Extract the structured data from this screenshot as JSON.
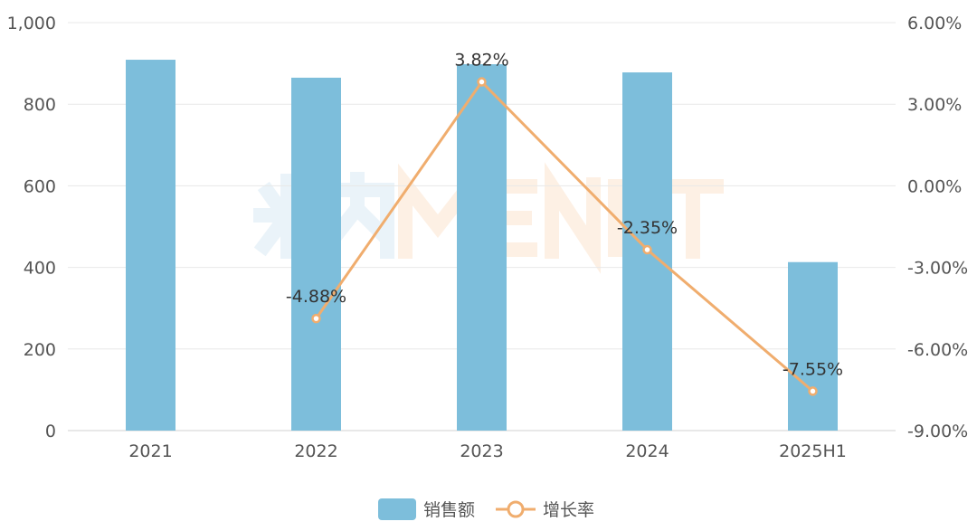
{
  "watermark": "米内MENET",
  "colors": {
    "bar": "#7dbedb",
    "line": "#f0ad6e",
    "grid": "#e8e8e8",
    "axis_text": "#555555",
    "label_text": "#333333"
  },
  "chart_data": {
    "type": "bar+line",
    "categories": [
      "2021",
      "2022",
      "2023",
      "2024",
      "2025H1"
    ],
    "series": [
      {
        "name": "销售额",
        "type": "bar",
        "axis": "left",
        "values": [
          909,
          865,
          898,
          878,
          413
        ]
      },
      {
        "name": "增长率",
        "type": "line",
        "axis": "right",
        "values": [
          null,
          -4.88,
          3.82,
          -2.35,
          -7.55
        ],
        "labels": [
          "",
          "-4.88%",
          "3.82%",
          "-2.35%",
          "-7.55%"
        ]
      }
    ],
    "y_left": {
      "range": [
        0,
        1000
      ],
      "ticks": [
        0,
        200,
        400,
        600,
        800,
        1000
      ],
      "tick_labels": [
        "0",
        "200",
        "400",
        "600",
        "800",
        "1,000"
      ]
    },
    "y_right": {
      "range": [
        -9,
        6
      ],
      "ticks": [
        -9,
        -6,
        -3,
        0,
        3,
        6
      ],
      "tick_labels": [
        "-9.00%",
        "-6.00%",
        "-3.00%",
        "0.00%",
        "3.00%",
        "6.00%"
      ]
    },
    "grid": true,
    "legend": {
      "placement": "bottom",
      "entries": [
        "销售额",
        "增长率"
      ]
    }
  }
}
